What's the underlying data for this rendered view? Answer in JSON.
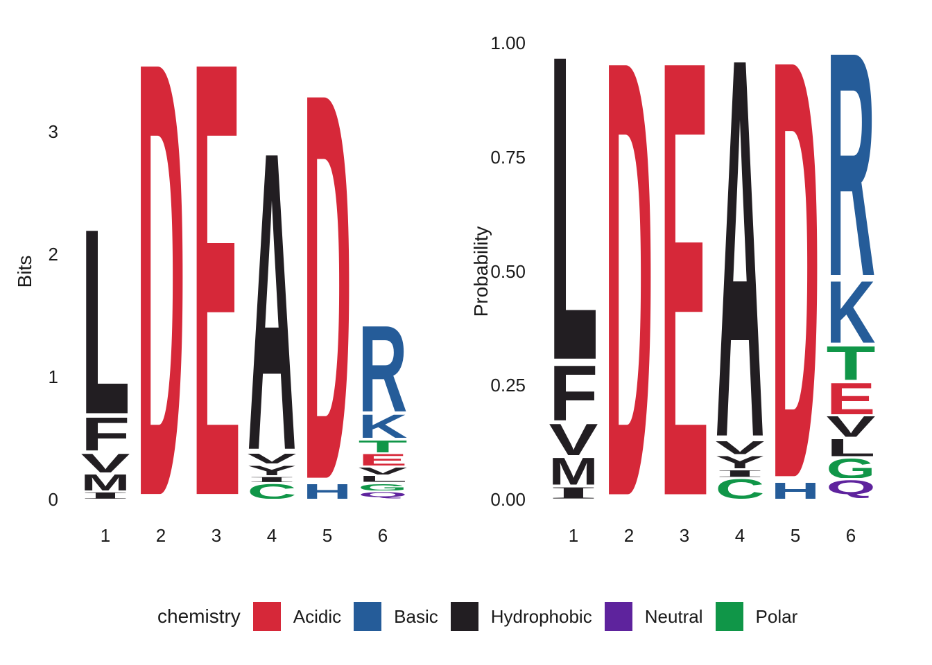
{
  "colors": {
    "acidic": "#D62839",
    "basic": "#255C99",
    "hydrophobic": "#221E22",
    "neutral": "#5E239D",
    "polar": "#109648"
  },
  "letter_chemistry": {
    "D": "acidic",
    "E": "acidic",
    "R": "basic",
    "K": "basic",
    "H": "basic",
    "A": "hydrophobic",
    "V": "hydrophobic",
    "L": "hydrophobic",
    "I": "hydrophobic",
    "F": "hydrophobic",
    "M": "hydrophobic",
    "Y": "hydrophobic",
    "T": "polar",
    "C": "polar",
    "G": "polar",
    "S": "polar",
    "Q": "neutral",
    "N": "neutral"
  },
  "legend": {
    "title": "chemistry",
    "items": [
      {
        "label": "Acidic",
        "chemistry": "acidic"
      },
      {
        "label": "Basic",
        "chemistry": "basic"
      },
      {
        "label": "Hydrophobic",
        "chemistry": "hydrophobic"
      },
      {
        "label": "Neutral",
        "chemistry": "neutral"
      },
      {
        "label": "Polar",
        "chemistry": "polar"
      }
    ]
  },
  "chart_data": [
    {
      "type": "sequence_logo",
      "ylabel": "Bits",
      "xlabel": "",
      "ytick_labels": [
        "3",
        "2",
        "1",
        "0"
      ],
      "ytick_values": [
        3,
        2,
        1,
        0
      ],
      "ylim": [
        0,
        3.74
      ],
      "xtick_labels": [
        "1",
        "2",
        "3",
        "4",
        "5",
        "6"
      ],
      "unit": "bits",
      "column_totals_bits": [
        2.27,
        3.71,
        3.71,
        2.93,
        3.44,
        1.45
      ],
      "positions": [
        {
          "position": "1",
          "letters": [
            [
              "L",
              1.589
            ],
            [
              "F",
              0.295
            ],
            [
              "V",
              0.17
            ],
            [
              "M",
              0.148
            ],
            [
              "I",
              0.068
            ]
          ]
        },
        {
          "position": "2",
          "letters": [
            [
              "D",
              3.71
            ]
          ]
        },
        {
          "position": "3",
          "letters": [
            [
              "E",
              3.71
            ]
          ]
        },
        {
          "position": "4",
          "letters": [
            [
              "A",
              2.549
            ],
            [
              "V",
              0.097
            ],
            [
              "Y",
              0.091
            ],
            [
              "I",
              0.056
            ],
            [
              "C",
              0.138
            ]
          ]
        },
        {
          "position": "5",
          "letters": [
            [
              "D",
              3.302
            ],
            [
              "H",
              0.138
            ]
          ]
        },
        {
          "position": "6",
          "letters": [
            [
              "R",
              0.747
            ],
            [
              "K",
              0.21
            ],
            [
              "T",
              0.116
            ],
            [
              "E",
              0.109
            ],
            [
              "V",
              0.073
            ],
            [
              "L",
              0.061
            ],
            [
              "G",
              0.07
            ],
            [
              "Q",
              0.065
            ]
          ]
        }
      ]
    },
    {
      "type": "sequence_logo",
      "ylabel": "Probability",
      "xlabel": "",
      "ytick_labels": [
        "1.00",
        "0.75",
        "0.50",
        "0.25",
        "0.00"
      ],
      "ytick_values": [
        1,
        0.75,
        0.5,
        0.25,
        0
      ],
      "ylim": [
        0,
        1
      ],
      "xtick_labels": [
        "1",
        "2",
        "3",
        "4",
        "5",
        "6"
      ],
      "unit": "probability",
      "positions": [
        {
          "position": "1",
          "letters": [
            [
              "L",
              0.7
            ],
            [
              "F",
              0.13
            ],
            [
              "V",
              0.075
            ],
            [
              "M",
              0.065
            ],
            [
              "I",
              0.03
            ]
          ]
        },
        {
          "position": "2",
          "letters": [
            [
              "D",
              1.0
            ]
          ]
        },
        {
          "position": "3",
          "letters": [
            [
              "E",
              1.0
            ]
          ]
        },
        {
          "position": "4",
          "letters": [
            [
              "A",
              0.87
            ],
            [
              "V",
              0.033
            ],
            [
              "Y",
              0.031
            ],
            [
              "I",
              0.019
            ],
            [
              "C",
              0.047
            ]
          ]
        },
        {
          "position": "5",
          "letters": [
            [
              "D",
              0.96
            ],
            [
              "H",
              0.04
            ]
          ]
        },
        {
          "position": "6",
          "letters": [
            [
              "R",
              0.515
            ],
            [
              "K",
              0.145
            ],
            [
              "T",
              0.08
            ],
            [
              "E",
              0.075
            ],
            [
              "V",
              0.05
            ],
            [
              "L",
              0.042
            ],
            [
              "G",
              0.048
            ],
            [
              "Q",
              0.045
            ]
          ]
        }
      ]
    }
  ]
}
